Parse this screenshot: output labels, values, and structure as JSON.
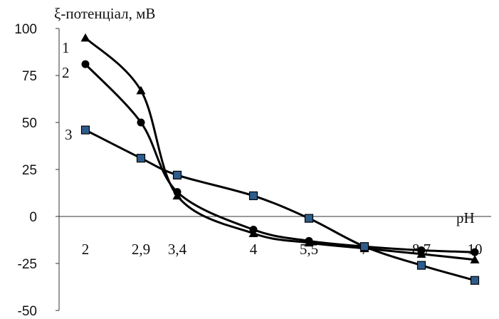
{
  "chart_data": {
    "type": "line",
    "ylabel": "ξ-потенціал, мВ",
    "xlabel": "pH",
    "categories": [
      "2",
      "2,9",
      "3,4",
      "4",
      "5,5",
      "7",
      "8,7",
      "10"
    ],
    "ylim": [
      -50,
      100
    ],
    "yticks": [
      "100",
      "75",
      "50",
      "25",
      "0",
      "-25",
      "-50"
    ],
    "grid": false,
    "legend": "none",
    "series": [
      {
        "name": "1",
        "marker": "triangle",
        "color": "#000000",
        "values": [
          95,
          67,
          11,
          -9,
          -14,
          -17,
          -20,
          -23
        ]
      },
      {
        "name": "2",
        "marker": "circle",
        "color": "#000000",
        "values": [
          81,
          50,
          13,
          -7,
          -13,
          -16,
          -18,
          -19
        ]
      },
      {
        "name": "3",
        "marker": "square",
        "color": "#000000",
        "marker_fill": "#2e5d8c",
        "values": [
          46,
          31,
          22,
          11,
          -1,
          -16,
          -26,
          -34
        ]
      }
    ]
  }
}
